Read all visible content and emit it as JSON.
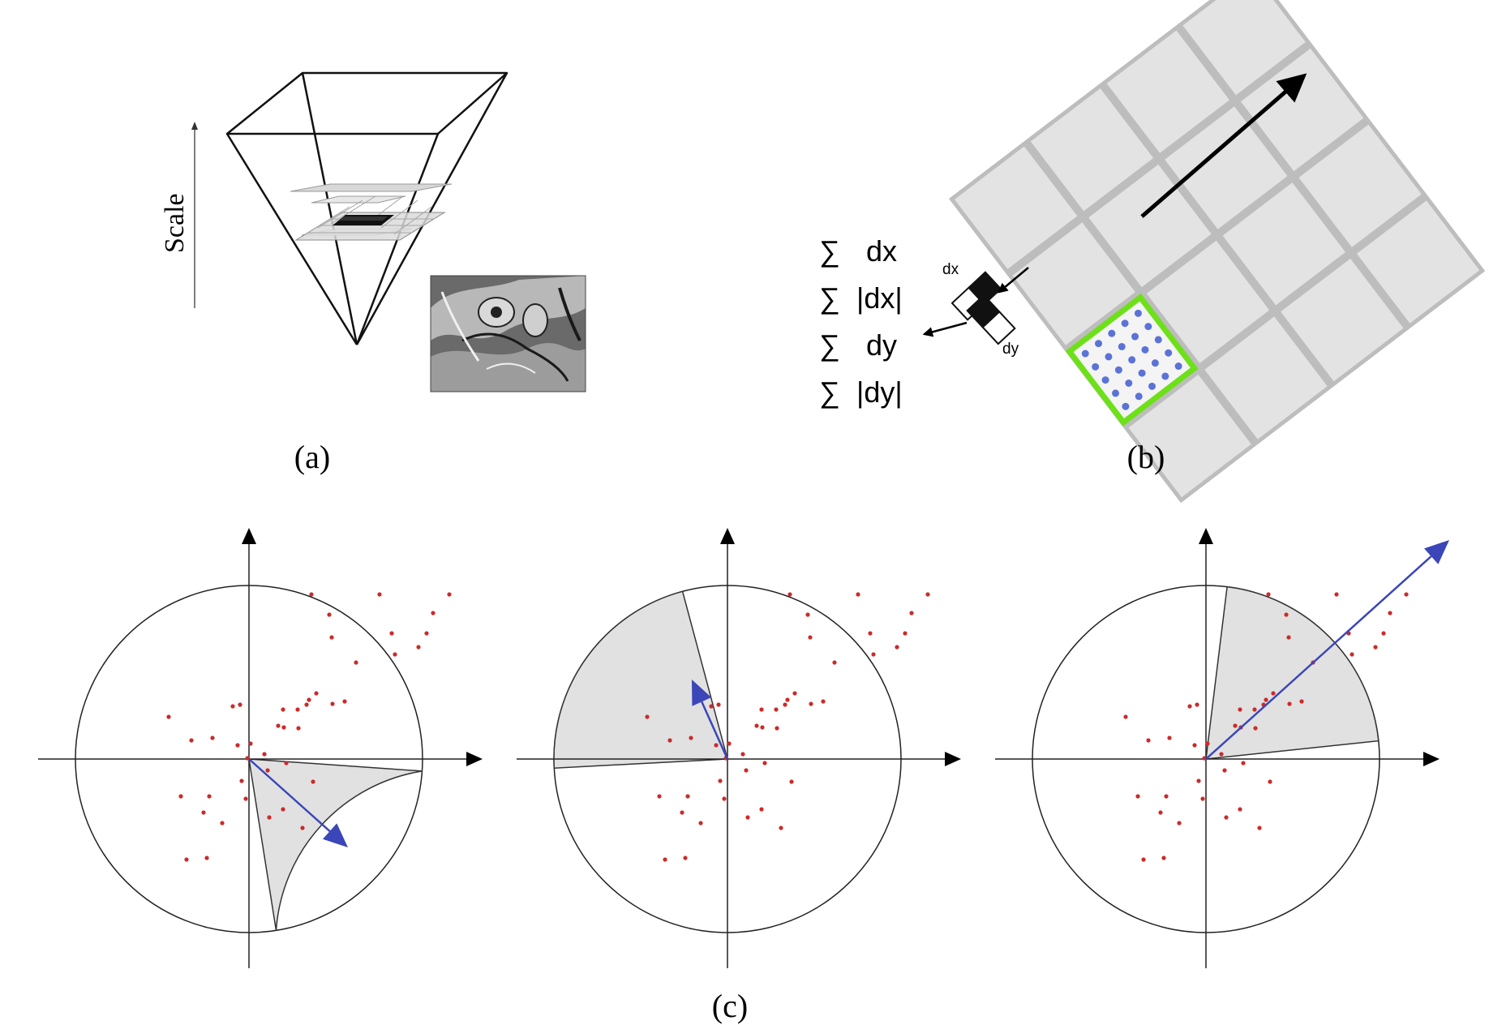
{
  "panel_a": {
    "caption": "(a)",
    "axis_label": "Scale"
  },
  "panel_b": {
    "caption": "(b)",
    "sum_symbol": "∑",
    "formulas": [
      "dx",
      "|dx|",
      "dy",
      "|dy|"
    ],
    "haar_dx_label": "dx",
    "haar_dy_label": "dy",
    "colors": {
      "grid_cell": "#e3e3e3",
      "grid_line": "#bdbdbd",
      "highlight": "#6ee01a",
      "dots": "#5b73d6"
    }
  },
  "panel_c": {
    "caption": "(c)",
    "colors": {
      "sector": "#e1e1e1",
      "arrow": "#3b46b8",
      "points": "#cc2a2a"
    }
  }
}
